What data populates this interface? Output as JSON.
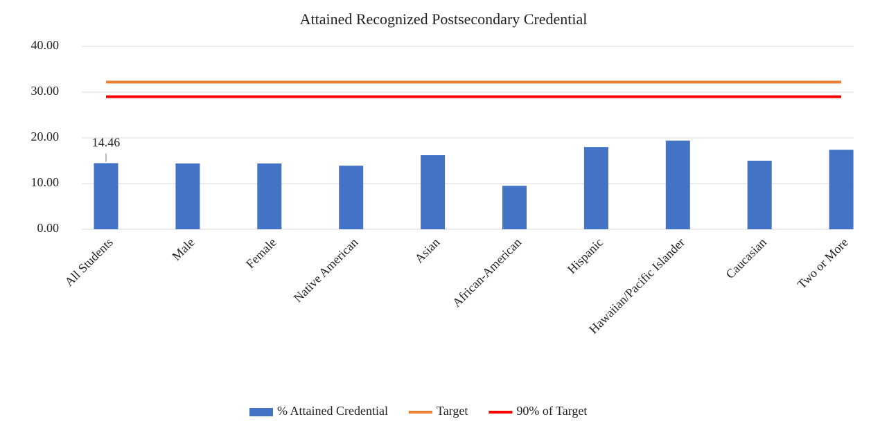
{
  "chart_data": {
    "type": "bar",
    "title": "Attained Recognized Postsecondary Credential",
    "categories": [
      "All Students",
      "Male",
      "Female",
      "Native American",
      "Asian",
      "African-American",
      "Hispanic",
      "Hawaiian/Pacific Islander",
      "Caucasian",
      "Two or More"
    ],
    "series": [
      {
        "name": "% Attained Credential",
        "color": "#4472c4",
        "type": "bar",
        "values": [
          14.46,
          14.4,
          14.4,
          13.9,
          16.2,
          9.5,
          18.0,
          19.4,
          15.0,
          17.4
        ]
      },
      {
        "name": "Target",
        "color": "#ed7d31",
        "type": "line",
        "values": [
          32.2,
          32.2,
          32.2,
          32.2,
          32.2,
          32.2,
          32.2,
          32.2,
          32.2,
          32.2
        ]
      },
      {
        "name": "90% of Target",
        "color": "#ff0000",
        "type": "line",
        "values": [
          29.0,
          29.0,
          29.0,
          29.0,
          29.0,
          29.0,
          29.0,
          29.0,
          29.0,
          29.0
        ]
      }
    ],
    "ylim": [
      0,
      40
    ],
    "yticks": [
      {
        "value": 0,
        "label": "0.00"
      },
      {
        "value": 10,
        "label": "10.00"
      },
      {
        "value": 20,
        "label": "20.00"
      },
      {
        "value": 30,
        "label": "30.00"
      },
      {
        "value": 40,
        "label": "40.00"
      }
    ],
    "grid": true,
    "legend": "bottom"
  }
}
